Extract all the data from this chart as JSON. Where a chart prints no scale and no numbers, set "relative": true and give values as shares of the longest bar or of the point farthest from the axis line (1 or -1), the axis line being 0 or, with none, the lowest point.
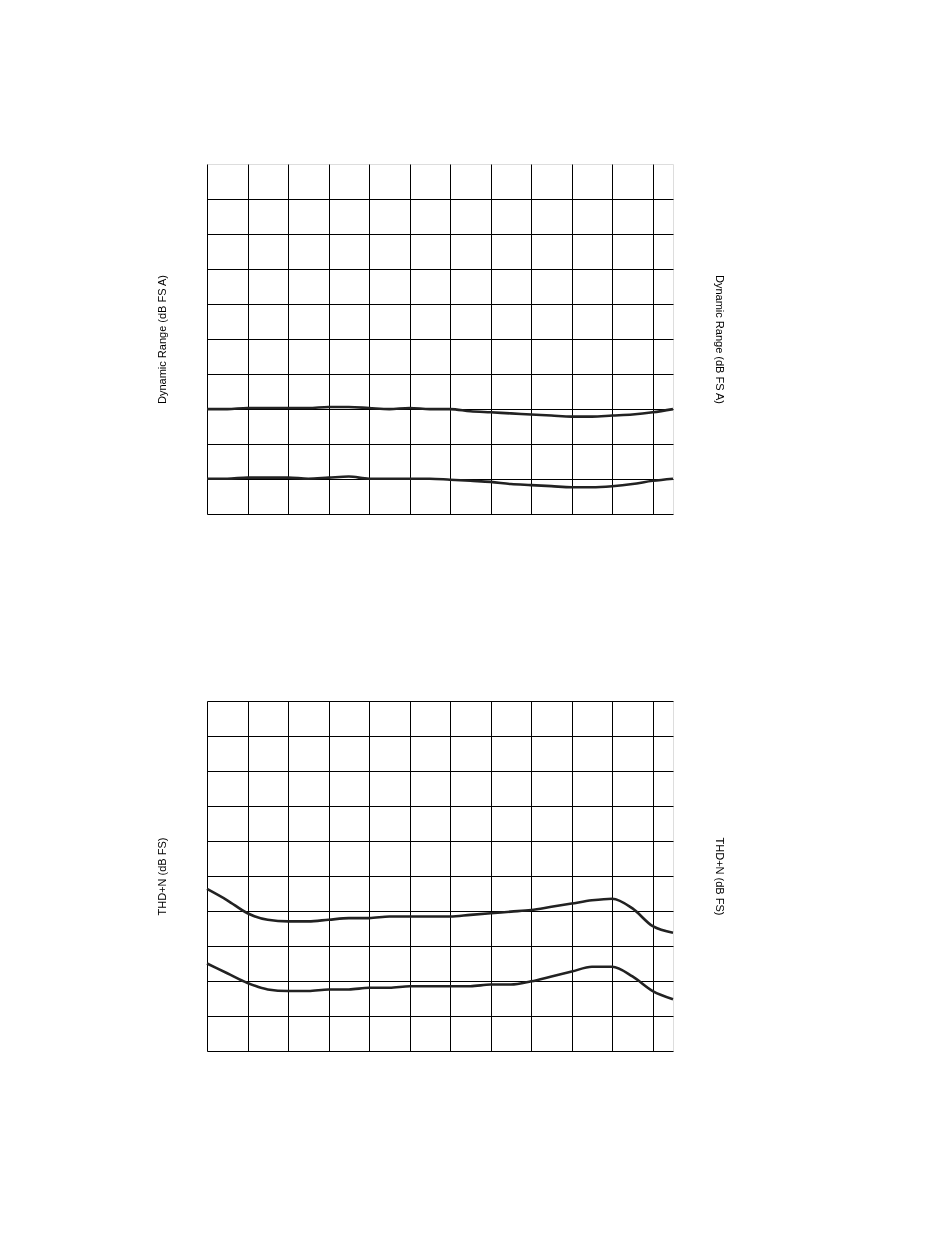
{
  "chart_data": [
    {
      "type": "line",
      "relative": true,
      "ylabel": "Dynamic Range (dB FS A)",
      "y2label": "Dynamic Range (dB FS A)",
      "grid": true,
      "legend": false,
      "categories": [
        null,
        null,
        null,
        null,
        null,
        null,
        null,
        null,
        null,
        null,
        null,
        null,
        null,
        null,
        null,
        null,
        null,
        null,
        null,
        null,
        null,
        null,
        null,
        null
      ],
      "series": [
        {
          "color": "#222222",
          "values": [
            0.98,
            0.98,
            0.99,
            0.99,
            0.99,
            0.99,
            1.0,
            1.0,
            0.99,
            0.98,
            0.99,
            0.98,
            0.98,
            0.96,
            0.95,
            0.94,
            0.93,
            0.92,
            0.91,
            0.91,
            0.92,
            0.93,
            0.95,
            0.98
          ]
        },
        {
          "color": "#222222",
          "values": [
            0.33,
            0.33,
            0.34,
            0.34,
            0.34,
            0.33,
            0.34,
            0.35,
            0.33,
            0.33,
            0.33,
            0.33,
            0.32,
            0.31,
            0.3,
            0.28,
            0.27,
            0.26,
            0.25,
            0.25,
            0.26,
            0.28,
            0.31,
            0.33
          ]
        }
      ]
    },
    {
      "type": "line",
      "relative": true,
      "ylabel": "THD+N (dB FS)",
      "y2label": "THD+N (dB FS)",
      "grid": true,
      "legend": false,
      "categories": [
        null,
        null,
        null,
        null,
        null,
        null,
        null,
        null,
        null,
        null,
        null,
        null,
        null,
        null,
        null,
        null,
        null,
        null,
        null,
        null,
        null,
        null,
        null,
        null
      ],
      "series": [
        {
          "color": "#222222",
          "values": [
            1.0,
            0.93,
            0.85,
            0.81,
            0.8,
            0.8,
            0.81,
            0.82,
            0.82,
            0.83,
            0.83,
            0.83,
            0.83,
            0.84,
            0.85,
            0.86,
            0.87,
            0.89,
            0.91,
            0.93,
            0.94,
            0.88,
            0.77,
            0.73
          ]
        },
        {
          "color": "#222222",
          "values": [
            0.54,
            0.48,
            0.42,
            0.38,
            0.37,
            0.37,
            0.38,
            0.38,
            0.39,
            0.39,
            0.4,
            0.4,
            0.4,
            0.4,
            0.41,
            0.41,
            0.43,
            0.46,
            0.49,
            0.52,
            0.52,
            0.46,
            0.37,
            0.32
          ]
        }
      ]
    }
  ]
}
